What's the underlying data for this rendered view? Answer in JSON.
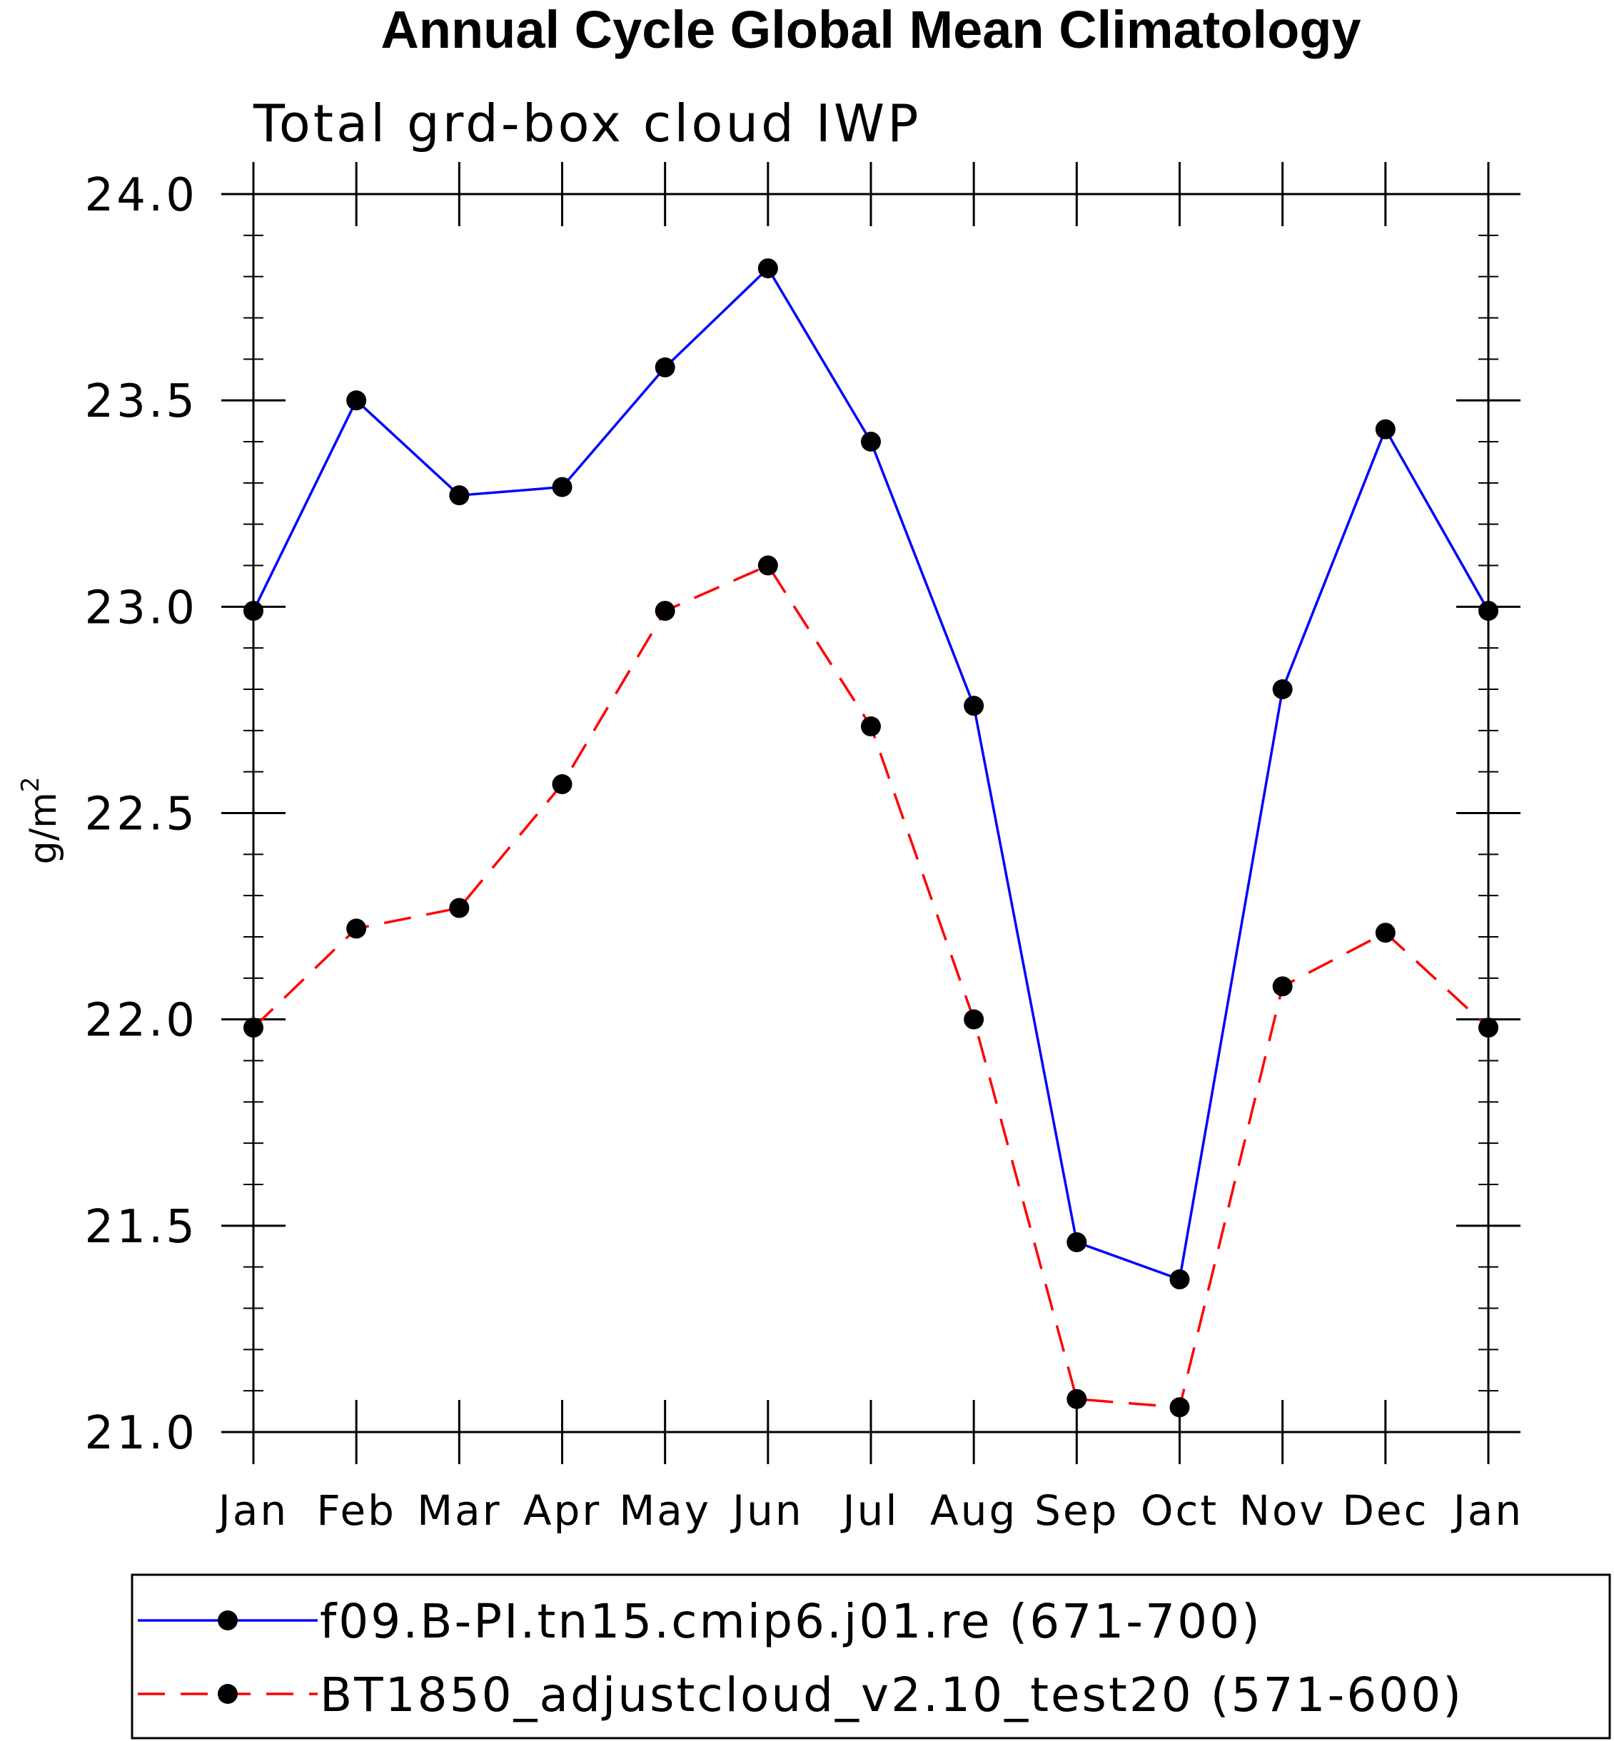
{
  "chart_data": {
    "type": "line",
    "title": "Annual Cycle Global Mean Climatology",
    "subtitle": "Total grd-box cloud IWP",
    "ylabel": "g/m²",
    "ylabel_base": "g/m",
    "ylabel_sup": "2",
    "xlabel": "",
    "categories": [
      "Jan",
      "Feb",
      "Mar",
      "Apr",
      "May",
      "Jun",
      "Jul",
      "Aug",
      "Sep",
      "Oct",
      "Nov",
      "Dec",
      "Jan"
    ],
    "ylim": [
      21.0,
      24.0
    ],
    "yticks": [
      21.0,
      21.5,
      22.0,
      22.5,
      23.0,
      23.5,
      24.0
    ],
    "ytick_labels": [
      "21.0",
      "21.5",
      "22.0",
      "22.5",
      "23.0",
      "23.5",
      "24.0"
    ],
    "series": [
      {
        "name": "f09.B-PI.tn15.cmip6.j01.re (671-700)",
        "color": "#0000ff",
        "style": "solid",
        "marker": "filled-circle",
        "values": [
          22.99,
          23.5,
          23.27,
          23.29,
          23.58,
          23.82,
          23.4,
          22.76,
          21.46,
          21.37,
          22.8,
          23.43,
          22.99
        ]
      },
      {
        "name": "BT1850_adjustcloud_v2.10_test20 (571-600)",
        "color": "#ff0000",
        "style": "dashed",
        "marker": "filled-circle",
        "values": [
          21.98,
          22.22,
          22.27,
          22.57,
          22.99,
          23.1,
          22.71,
          22.0,
          21.08,
          21.06,
          22.08,
          22.21,
          21.98
        ]
      }
    ],
    "legend": "bottom",
    "grid": false
  }
}
